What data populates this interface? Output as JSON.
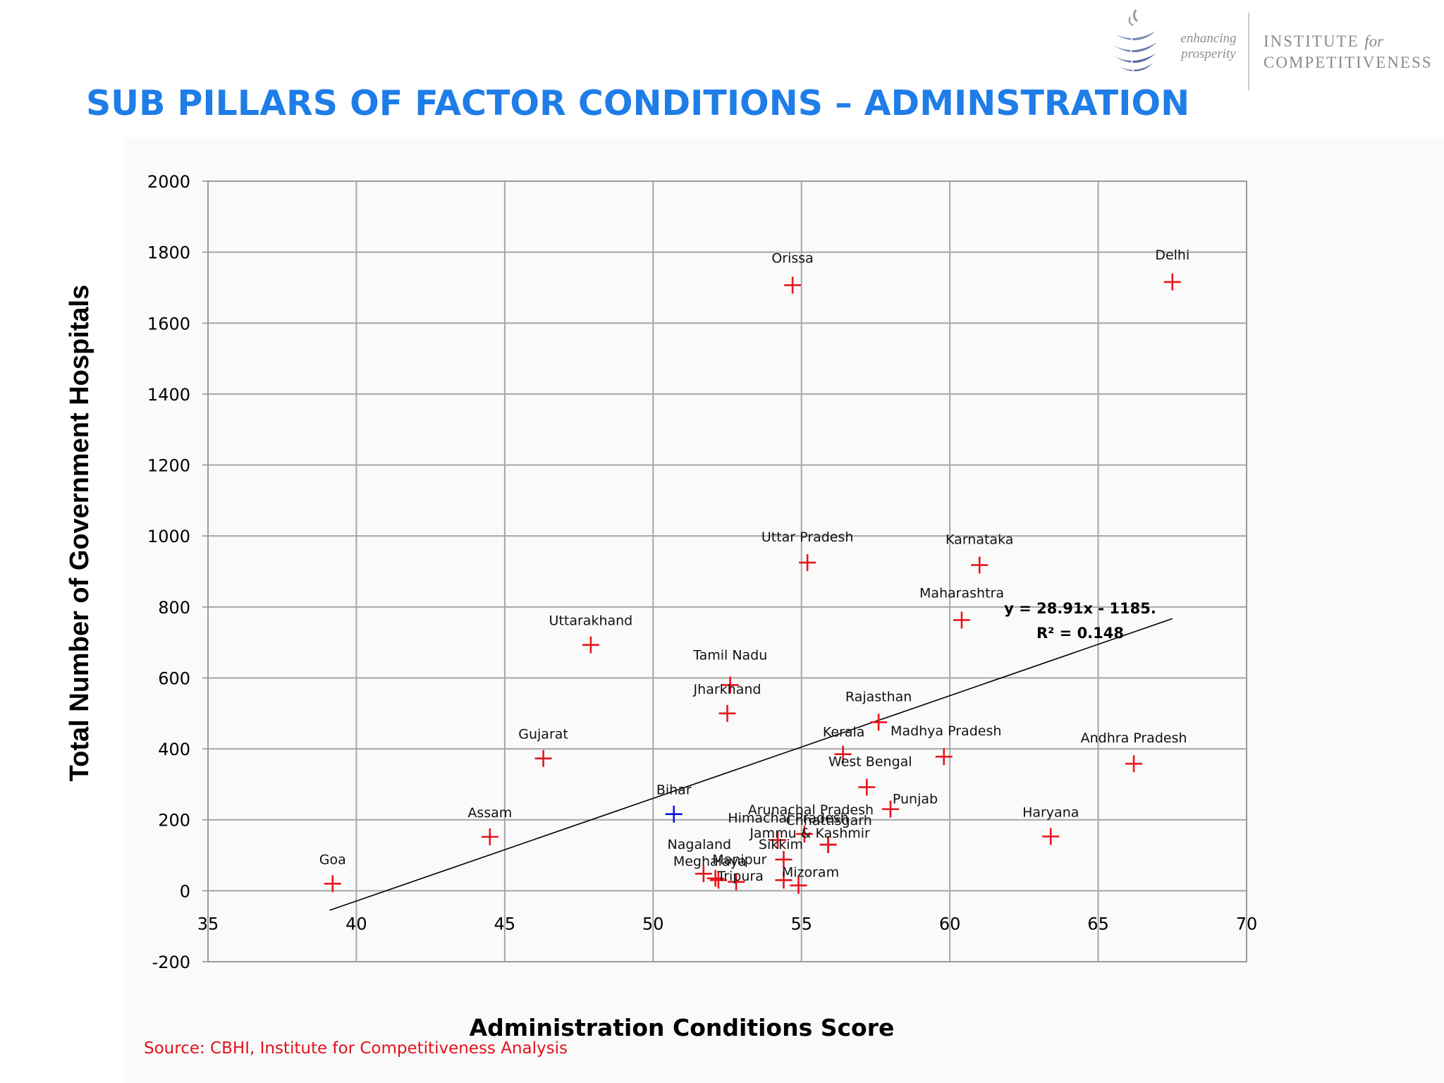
{
  "slide": {
    "title": "SUB PILLARS OF FACTOR CONDITIONS – ADMINSTRATION",
    "source": "Source: CBHI, Institute for Competitiveness Analysis"
  },
  "logo": {
    "tagline_line1": "enhancing",
    "tagline_line2": "prosperity",
    "institute_line1": "INSTITUTE",
    "institute_for": "for",
    "institute_line2": "COMPETITIVENESS"
  },
  "colors": {
    "title": "#1f7de8",
    "source": "#e3121b",
    "marker": "#e8141c",
    "highlight_marker": "#1010e0",
    "trendline": "#000000",
    "grid": "#a6a6a6"
  },
  "chart_data": {
    "type": "scatter",
    "title": "",
    "xlabel": "Administration Conditions Score",
    "ylabel": "Total Number of Government Hospitals",
    "xlim": [
      35,
      70
    ],
    "ylim": [
      -200,
      2000
    ],
    "xticks": [
      35,
      40,
      45,
      50,
      55,
      60,
      65,
      70
    ],
    "yticks": [
      -200,
      0,
      200,
      400,
      600,
      800,
      1000,
      1200,
      1400,
      1600,
      1800,
      2000
    ],
    "grid": true,
    "marker": "plus",
    "points": [
      {
        "label": "Goa",
        "x": 39.2,
        "y": 20,
        "color": "#e8141c"
      },
      {
        "label": "Assam",
        "x": 44.5,
        "y": 152,
        "color": "#e8141c"
      },
      {
        "label": "Gujarat",
        "x": 46.3,
        "y": 373,
        "color": "#e8141c"
      },
      {
        "label": "Uttarakhand",
        "x": 47.9,
        "y": 693,
        "color": "#e8141c"
      },
      {
        "label": "Bihar",
        "x": 50.7,
        "y": 216,
        "color": "#1010e0"
      },
      {
        "label": "Nagaland",
        "x": 51.7,
        "y": 48,
        "color": "#e8141c"
      },
      {
        "label": "Meghalaya",
        "x": 52.1,
        "y": 35,
        "color": "#e8141c"
      },
      {
        "label": "Manipur",
        "x": 52.2,
        "y": 30,
        "color": "#e8141c"
      },
      {
        "label": "Tripura",
        "x": 52.8,
        "y": 25,
        "color": "#e8141c"
      },
      {
        "label": "Tamil Nadu",
        "x": 52.6,
        "y": 580,
        "color": "#e8141c"
      },
      {
        "label": "Jharkhand",
        "x": 52.5,
        "y": 500,
        "color": "#e8141c"
      },
      {
        "label": "Himachal Pradesh",
        "x": 54.2,
        "y": 143,
        "color": "#e8141c"
      },
      {
        "label": "Sikkim",
        "x": 54.4,
        "y": 88,
        "color": "#e8141c"
      },
      {
        "label": "Mizoram",
        "x": 54.4,
        "y": 30,
        "color": "#e8141c"
      },
      {
        "label": "Mizoram",
        "x": 54.9,
        "y": 15,
        "color": "#e8141c"
      },
      {
        "label": "Orissa",
        "x": 54.7,
        "y": 1707,
        "color": "#e8141c"
      },
      {
        "label": "Uttar Pradesh",
        "x": 55.2,
        "y": 925,
        "color": "#e8141c"
      },
      {
        "label": "Arunachal Pradesh",
        "x": 55.1,
        "y": 160,
        "color": "#e8141c"
      },
      {
        "label": "Jammu & Kashmir",
        "x": 55.9,
        "y": 130,
        "color": "#e8141c"
      },
      {
        "label": "Chhattisgarh",
        "x": 55.9,
        "y": 130,
        "color": "#e8141c"
      },
      {
        "label": "Kerala",
        "x": 56.4,
        "y": 385,
        "color": "#e8141c"
      },
      {
        "label": "West Bengal",
        "x": 57.2,
        "y": 292,
        "color": "#e8141c"
      },
      {
        "label": "Rajasthan",
        "x": 57.6,
        "y": 475,
        "color": "#e8141c"
      },
      {
        "label": "Punjab",
        "x": 58.0,
        "y": 230,
        "color": "#e8141c"
      },
      {
        "label": "Madhya Pradesh",
        "x": 59.8,
        "y": 378,
        "color": "#e8141c"
      },
      {
        "label": "Maharashtra",
        "x": 60.4,
        "y": 763,
        "color": "#e8141c"
      },
      {
        "label": "Karnataka",
        "x": 61.0,
        "y": 918,
        "color": "#e8141c"
      },
      {
        "label": "Haryana",
        "x": 63.4,
        "y": 153,
        "color": "#e8141c"
      },
      {
        "label": "Andhra Pradesh",
        "x": 66.2,
        "y": 358,
        "color": "#e8141c"
      },
      {
        "label": "Delhi",
        "x": 67.5,
        "y": 1716,
        "color": "#e8141c"
      }
    ],
    "trendline": {
      "x_start": 39.1,
      "y_start": -55,
      "x_end": 67.5,
      "y_end": 767,
      "equation": "y = 28.91x - 1185.",
      "r_squared": "R² = 0.148"
    }
  }
}
